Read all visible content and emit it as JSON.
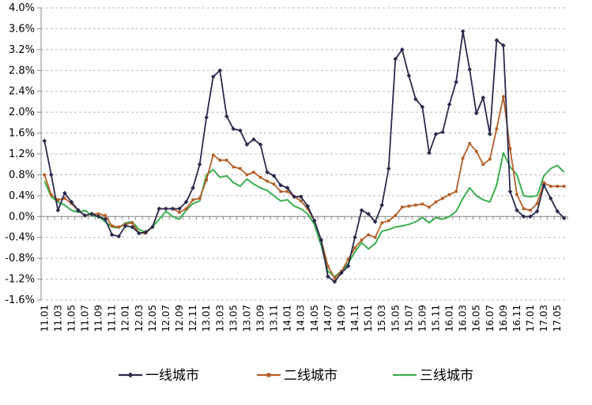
{
  "chart_data": {
    "type": "line",
    "title": "",
    "xlabel": "",
    "ylabel": "",
    "ylim": [
      -1.6,
      4.0
    ],
    "yticks": [
      "4.0%",
      "3.6%",
      "3.2%",
      "2.8%",
      "2.4%",
      "2.0%",
      "1.6%",
      "1.2%",
      "0.8%",
      "0.4%",
      "0.0%",
      "-0.4%",
      "-0.8%",
      "-1.2%",
      "-1.6%"
    ],
    "grid": "horizontal dashed",
    "legend_position": "bottom",
    "x_tick_labels": [
      "11.01",
      "11.03",
      "11.05",
      "11.07",
      "11.09",
      "11.11",
      "12.01",
      "12.03",
      "12.05",
      "12.07",
      "12.09",
      "12.11",
      "13.01",
      "13.03",
      "13.05",
      "13.07",
      "13.09",
      "13.11",
      "14.01",
      "14.03",
      "14.05",
      "14.07",
      "14.09",
      "14.11",
      "15.01",
      "15.03",
      "15.05",
      "15.07",
      "15.09",
      "15.11",
      "16.01",
      "16.03",
      "16.05",
      "16.07",
      "16.09",
      "16.11",
      "17.01",
      "17.03",
      "17.05"
    ],
    "x_months": [
      "11.01",
      "11.02",
      "11.03",
      "11.04",
      "11.05",
      "11.06",
      "11.07",
      "11.08",
      "11.09",
      "11.10",
      "11.11",
      "11.12",
      "12.01",
      "12.02",
      "12.03",
      "12.04",
      "12.05",
      "12.06",
      "12.07",
      "12.08",
      "12.09",
      "12.10",
      "12.11",
      "12.12",
      "13.01",
      "13.02",
      "13.03",
      "13.04",
      "13.05",
      "13.06",
      "13.07",
      "13.08",
      "13.09",
      "13.10",
      "13.11",
      "13.12",
      "14.01",
      "14.02",
      "14.03",
      "14.04",
      "14.05",
      "14.06",
      "14.07",
      "14.08",
      "14.09",
      "14.10",
      "14.11",
      "14.12",
      "15.01",
      "15.02",
      "15.03",
      "15.04",
      "15.05",
      "15.06",
      "15.07",
      "15.08",
      "15.09",
      "15.10",
      "15.11",
      "15.12",
      "16.01",
      "16.02",
      "16.03",
      "16.04",
      "16.05",
      "16.06",
      "16.07",
      "16.08",
      "16.09",
      "16.10",
      "16.11",
      "16.12",
      "17.01",
      "17.02",
      "17.03",
      "17.04",
      "17.05",
      "17.06"
    ],
    "series": [
      {
        "name": "一线城市",
        "color": "#2b2a4c",
        "marker": "diamond",
        "values": [
          1.45,
          0.8,
          0.12,
          0.45,
          0.28,
          0.12,
          0.02,
          0.05,
          0.0,
          -0.05,
          -0.35,
          -0.38,
          -0.18,
          -0.2,
          -0.32,
          -0.3,
          -0.2,
          0.15,
          0.15,
          0.15,
          0.15,
          0.28,
          0.55,
          1.0,
          1.9,
          2.68,
          2.8,
          1.92,
          1.68,
          1.65,
          1.38,
          1.48,
          1.38,
          0.85,
          0.78,
          0.6,
          0.55,
          0.38,
          0.38,
          0.2,
          -0.08,
          -0.45,
          -1.15,
          -1.25,
          -1.08,
          -0.95,
          -0.4,
          0.12,
          0.05,
          -0.1,
          0.22,
          0.92,
          3.02,
          3.2,
          2.7,
          2.25,
          2.1,
          1.22,
          1.58,
          1.62,
          2.15,
          2.58,
          3.55,
          2.82,
          1.98,
          2.28,
          1.58,
          3.38,
          3.28,
          0.48,
          0.12,
          0.0,
          0.0,
          0.1,
          0.6,
          0.35,
          0.1,
          -0.03
        ]
      },
      {
        "name": "二线城市",
        "color": "#b35f29",
        "marker": "square",
        "values": [
          0.8,
          0.42,
          0.32,
          0.35,
          0.25,
          0.12,
          0.02,
          0.05,
          0.05,
          0.02,
          -0.18,
          -0.2,
          -0.15,
          -0.12,
          -0.32,
          -0.32,
          -0.2,
          0.15,
          0.15,
          0.15,
          0.08,
          0.15,
          0.32,
          0.35,
          0.7,
          1.18,
          1.08,
          1.08,
          0.95,
          0.92,
          0.8,
          0.85,
          0.75,
          0.68,
          0.62,
          0.48,
          0.48,
          0.38,
          0.3,
          0.15,
          -0.08,
          -0.45,
          -0.95,
          -1.18,
          -1.05,
          -0.82,
          -0.6,
          -0.45,
          -0.35,
          -0.4,
          -0.12,
          -0.08,
          0.02,
          0.18,
          0.2,
          0.22,
          0.24,
          0.18,
          0.28,
          0.35,
          0.42,
          0.48,
          1.12,
          1.4,
          1.25,
          1.0,
          1.1,
          1.68,
          2.3,
          1.3,
          0.42,
          0.15,
          0.12,
          0.25,
          0.65,
          0.58,
          0.58,
          0.58
        ]
      },
      {
        "name": "三线城市",
        "color": "#3cae50",
        "marker": "none",
        "values": [
          0.68,
          0.38,
          0.28,
          0.22,
          0.12,
          0.08,
          0.12,
          0.02,
          0.0,
          -0.1,
          -0.2,
          -0.22,
          -0.12,
          -0.1,
          -0.25,
          -0.3,
          -0.2,
          -0.05,
          0.1,
          0.0,
          -0.05,
          0.12,
          0.25,
          0.3,
          0.8,
          0.9,
          0.75,
          0.78,
          0.65,
          0.58,
          0.72,
          0.62,
          0.55,
          0.5,
          0.4,
          0.3,
          0.32,
          0.2,
          0.15,
          0.05,
          -0.15,
          -0.55,
          -1.05,
          -1.15,
          -1.05,
          -0.9,
          -0.68,
          -0.5,
          -0.62,
          -0.52,
          -0.28,
          -0.25,
          -0.2,
          -0.18,
          -0.15,
          -0.1,
          -0.02,
          -0.12,
          -0.02,
          -0.05,
          0.0,
          0.1,
          0.35,
          0.55,
          0.4,
          0.32,
          0.28,
          0.6,
          1.22,
          0.95,
          0.8,
          0.4,
          0.38,
          0.4,
          0.78,
          0.92,
          0.98,
          0.85
        ]
      }
    ]
  }
}
